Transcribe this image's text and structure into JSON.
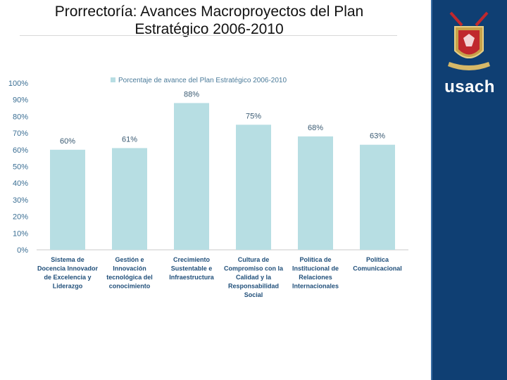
{
  "header": {
    "title_line1": "Prorrectoría: Avances Macroproyectos del Plan",
    "title_line2": "Estratégico 2006-2010"
  },
  "sidebar": {
    "brand": "usach",
    "color": "#0f3f73",
    "logo_icon": "usach-crest-icon"
  },
  "chart_data": {
    "type": "bar",
    "legend": [
      "Porcentaje de avance del Plan Estratégico 2006-2010"
    ],
    "legend_position": "top",
    "categories": [
      [
        "Sistema de",
        "Docencia Innovador",
        "de Excelencia y",
        "Liderazgo"
      ],
      [
        "Gestión e",
        "Innovación",
        "tecnológica del",
        "conocimiento"
      ],
      [
        "Crecimiento",
        "Sustentable e",
        "Infraestructura"
      ],
      [
        "Cultura de",
        "Compromiso con la",
        "Calidad y la",
        "Responsabilidad",
        "Social"
      ],
      [
        "Política de",
        "Institucional de",
        "Relaciones",
        "Internacionales"
      ],
      [
        "Política",
        "Comunicacional"
      ]
    ],
    "series": [
      {
        "name": "Porcentaje de avance del Plan Estratégico 2006-2010",
        "values": [
          60,
          61,
          88,
          75,
          68,
          63
        ],
        "labels": [
          "60%",
          "61%",
          "88%",
          "75%",
          "68%",
          "63%"
        ],
        "color": "#b7dee3"
      }
    ],
    "yticks": [
      "0%",
      "10%",
      "20%",
      "30%",
      "40%",
      "50%",
      "60%",
      "70%",
      "80%",
      "90%",
      "100%"
    ],
    "ylim": [
      0,
      100
    ],
    "grid": false
  }
}
